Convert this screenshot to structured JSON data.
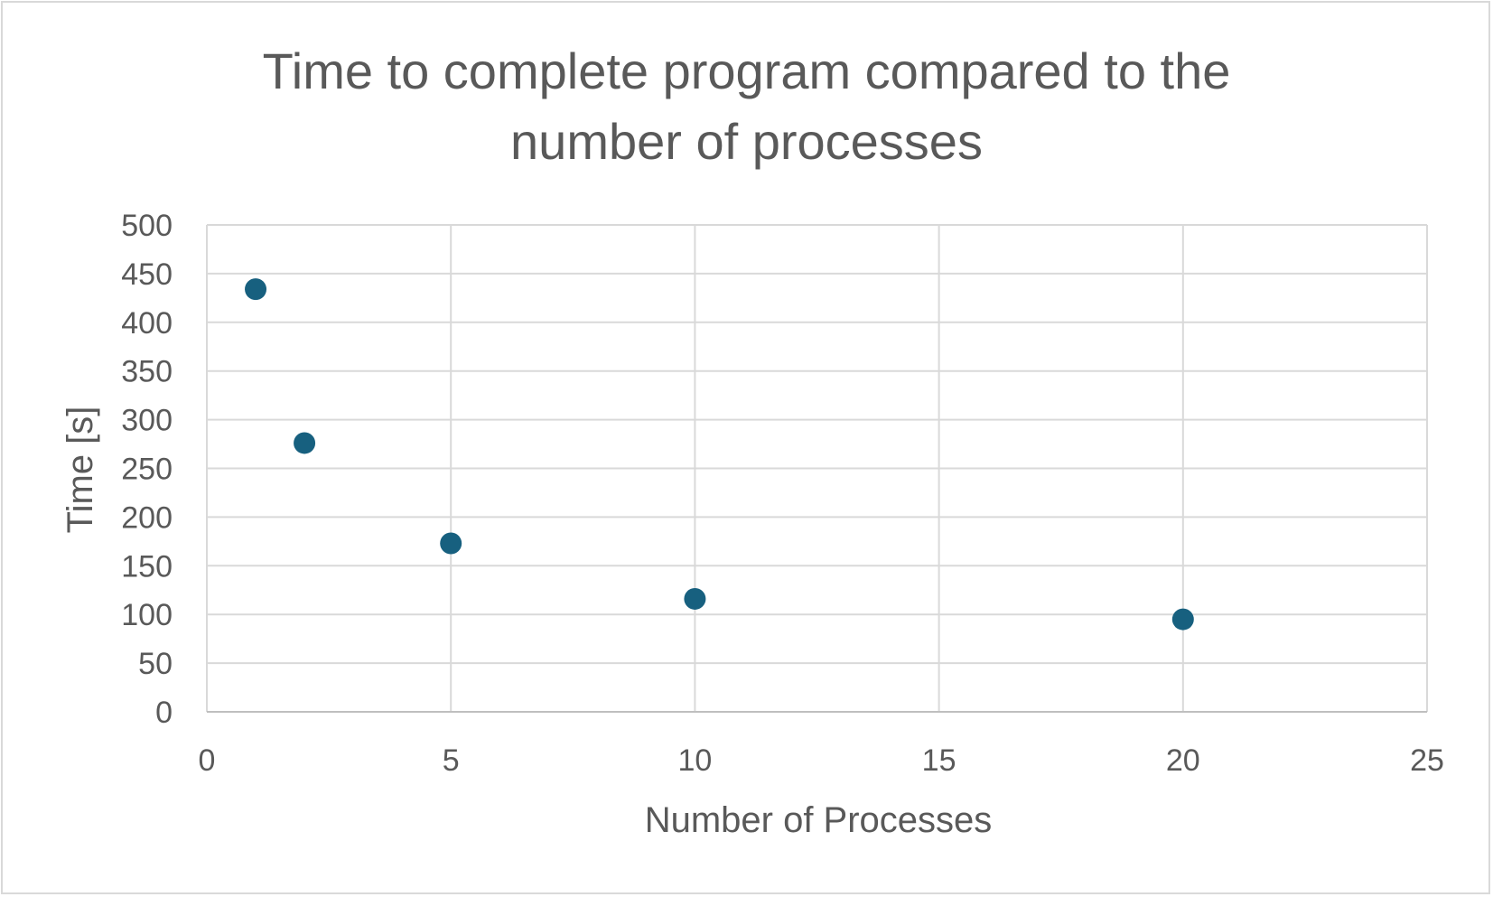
{
  "chart_data": {
    "type": "scatter",
    "title": "Time to complete program compared to the number of processes",
    "title_lines": [
      "Time to complete program compared to the",
      "number of processes"
    ],
    "xlabel": "Number of Processes",
    "ylabel": "Time [s]",
    "xlim": [
      0,
      25
    ],
    "ylim": [
      0,
      500
    ],
    "xticks": [
      0,
      5,
      10,
      15,
      20,
      25
    ],
    "yticks": [
      0,
      50,
      100,
      150,
      200,
      250,
      300,
      350,
      400,
      450,
      500
    ],
    "grid": true,
    "legend": "none",
    "series": [
      {
        "color": "#17607f",
        "points": [
          {
            "x": 1,
            "y": 434
          },
          {
            "x": 2,
            "y": 276
          },
          {
            "x": 5,
            "y": 173
          },
          {
            "x": 10,
            "y": 116
          },
          {
            "x": 20,
            "y": 95
          }
        ]
      }
    ]
  }
}
